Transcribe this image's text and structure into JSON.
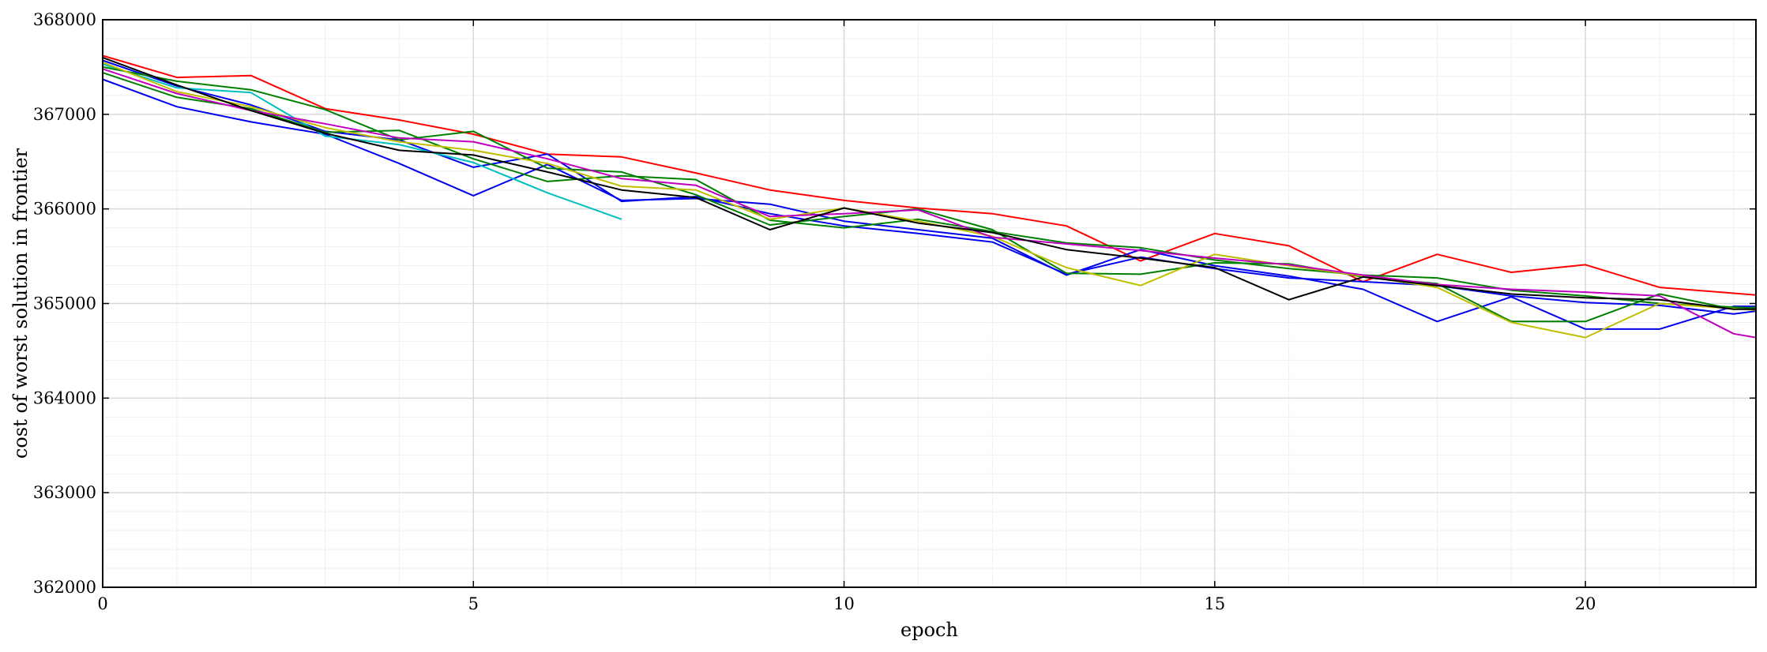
{
  "chart_data": {
    "type": "line",
    "title": "",
    "xlabel": "epoch",
    "ylabel": "cost of worst solution in frontier",
    "xlim": [
      0,
      22.3
    ],
    "ylim": [
      362000,
      368000
    ],
    "x_major_ticks": [
      0,
      5,
      10,
      15,
      20
    ],
    "y_major_ticks": [
      362000,
      363000,
      364000,
      365000,
      366000,
      367000,
      368000
    ],
    "x_tick_labels": [
      "0",
      "5",
      "10",
      "15",
      "20"
    ],
    "y_tick_labels": [
      "362000",
      "363000",
      "364000",
      "365000",
      "366000",
      "367000",
      "368000"
    ],
    "grid": true,
    "minor_grid": true,
    "legend": "none",
    "series": [
      {
        "color": "#ff0000",
        "x": [
          0,
          1,
          2,
          3,
          4,
          5,
          6,
          7,
          8,
          9,
          10,
          11,
          12,
          13,
          14,
          15,
          16,
          17,
          18,
          19,
          20,
          21,
          22.3
        ],
        "y": [
          367620,
          367390,
          367410,
          367060,
          366940,
          366790,
          366580,
          366550,
          366380,
          366200,
          366090,
          366010,
          365950,
          365820,
          365450,
          365740,
          365610,
          365230,
          365520,
          365330,
          365410,
          365170,
          365090
        ]
      },
      {
        "color": "#0000ee",
        "x": [
          0,
          1,
          2,
          3,
          4,
          5,
          6,
          7,
          8,
          9,
          10,
          11,
          12,
          13,
          14,
          15,
          16,
          17,
          18,
          19,
          20,
          21,
          22,
          22.3
        ],
        "y": [
          367370,
          367080,
          366920,
          366790,
          366480,
          366140,
          366470,
          366090,
          366110,
          366050,
          365870,
          365780,
          365690,
          365300,
          365570,
          365400,
          365290,
          365150,
          364810,
          365070,
          364730,
          364730,
          364970,
          364970
        ]
      },
      {
        "color": "#0000ee",
        "x": [
          0,
          1,
          2,
          3,
          4,
          5,
          6,
          7,
          8,
          9,
          10,
          11,
          12,
          13,
          14,
          15,
          16,
          17,
          18,
          19,
          20,
          21,
          22,
          22.3
        ],
        "y": [
          367570,
          367300,
          367100,
          366820,
          366730,
          366440,
          366580,
          366080,
          366130,
          365950,
          365820,
          365740,
          365650,
          365310,
          365490,
          365370,
          365270,
          365230,
          365190,
          365080,
          365010,
          364980,
          364890,
          364920
        ]
      },
      {
        "color": "#00bfbf",
        "x": [
          0,
          1,
          2,
          3,
          4,
          5,
          6,
          7
        ],
        "y": [
          367530,
          367280,
          367230,
          366770,
          366680,
          366490,
          366170,
          365890
        ]
      },
      {
        "color": "#008000",
        "x": [
          0,
          1,
          2,
          3,
          4,
          5,
          6,
          7,
          8,
          9,
          10,
          11,
          12,
          13,
          14,
          15,
          16,
          17,
          18,
          19,
          20,
          21,
          22,
          22.3
        ],
        "y": [
          367500,
          367350,
          367260,
          367050,
          366730,
          366820,
          366430,
          366390,
          366150,
          365830,
          365920,
          366000,
          365780,
          365320,
          365310,
          365430,
          365420,
          365280,
          365210,
          364810,
          364810,
          365100,
          364940,
          364960
        ]
      },
      {
        "color": "#008000",
        "x": [
          0,
          1,
          2,
          3,
          4,
          5,
          6,
          7,
          8,
          9,
          10,
          11,
          12,
          13,
          14,
          15,
          16,
          17,
          18,
          19,
          20,
          21,
          22.3
        ],
        "y": [
          367440,
          367180,
          367060,
          366810,
          366830,
          366530,
          366290,
          366350,
          366310,
          365880,
          365800,
          365890,
          365760,
          365640,
          365590,
          365460,
          365370,
          365300,
          365270,
          365140,
          365080,
          365000,
          364950
        ]
      },
      {
        "color": "#bfbf00",
        "x": [
          0,
          1,
          2,
          3,
          4,
          5,
          6,
          7,
          8,
          9,
          10,
          11,
          12,
          13,
          14,
          15,
          16,
          17,
          18,
          19,
          20,
          21,
          22.3
        ],
        "y": [
          367550,
          367240,
          367080,
          366860,
          366710,
          366620,
          366480,
          366240,
          366200,
          365890,
          366010,
          365870,
          365710,
          365380,
          365190,
          365520,
          365400,
          365290,
          365170,
          364800,
          364640,
          365000,
          364930
        ]
      },
      {
        "color": "#bf00bf",
        "x": [
          0,
          1,
          2,
          3,
          4,
          5,
          6,
          7,
          8,
          9,
          10,
          11,
          12,
          13,
          14,
          15,
          16,
          17,
          18,
          19,
          20,
          21,
          22,
          22.3
        ],
        "y": [
          367480,
          367220,
          367040,
          366900,
          366750,
          366710,
          366530,
          366320,
          366250,
          365920,
          365950,
          365990,
          365700,
          365630,
          365560,
          365480,
          365410,
          365300,
          365200,
          365150,
          365120,
          365080,
          364680,
          364640
        ]
      },
      {
        "color": "#000000",
        "x": [
          0,
          1,
          2,
          3,
          4,
          5,
          6,
          7,
          8,
          9,
          10,
          11,
          12,
          13,
          14,
          15,
          16,
          17,
          18,
          19,
          20,
          21,
          22,
          22.3
        ],
        "y": [
          367600,
          367310,
          367040,
          366800,
          366620,
          366570,
          366390,
          366200,
          366120,
          365780,
          366010,
          365850,
          365750,
          365570,
          365480,
          365380,
          365040,
          365280,
          365190,
          365100,
          365060,
          365040,
          364940,
          364940
        ]
      }
    ]
  }
}
